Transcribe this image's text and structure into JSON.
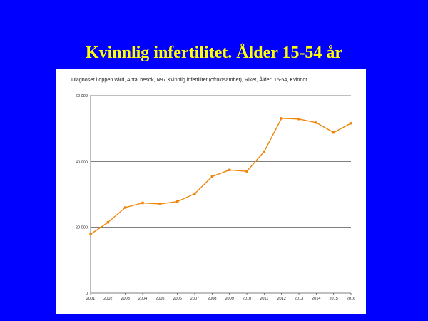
{
  "slide": {
    "title": "Kvinnlig infertilitet. Ålder 15-54 år"
  },
  "colors": {
    "background": "#0000ff",
    "title": "#ffff00",
    "series_line": "#f0850a",
    "grid": "#555555"
  },
  "chart_data": {
    "type": "line",
    "title": "Diagnoser i öppen vård, Antal besök, N97 Kvinnlig infertilitet (ofruktsamhet), Riket, Ålder: 15-54, Kvinnor",
    "xlabel": "",
    "ylabel": "",
    "x": [
      "2001",
      "2002",
      "2003",
      "2004",
      "2005",
      "2006",
      "2007",
      "2008",
      "2009",
      "2010",
      "2011",
      "2012",
      "2013",
      "2014",
      "2015",
      "2016"
    ],
    "series": [
      {
        "values": [
          17900,
          21500,
          26000,
          27400,
          27100,
          27800,
          30200,
          35400,
          37400,
          37000,
          43000,
          53100,
          52900,
          51800,
          48800,
          51600
        ]
      }
    ],
    "ylim": [
      0,
      60000
    ],
    "yticks": [
      0,
      20000,
      40000,
      60000
    ],
    "ytick_labels": [
      "0",
      "20 000",
      "40 000",
      "60 000"
    ],
    "grid": "horizontal",
    "legend": "none"
  }
}
